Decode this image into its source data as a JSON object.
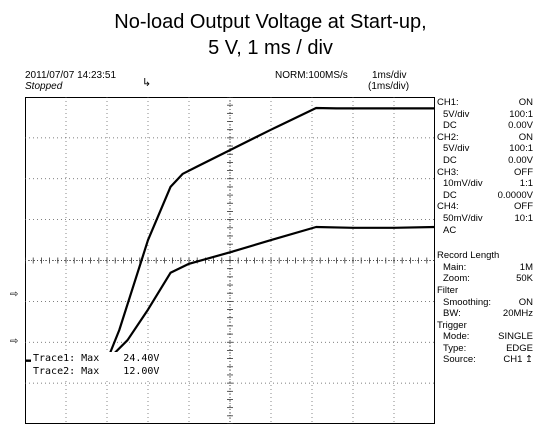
{
  "title_line1": "No-load Output Voltage at Start-up,",
  "title_line2": "5 V, 1 ms / div",
  "scope": {
    "datetime": "2011/07/07  14:23:51",
    "status": "Stopped",
    "acq": "NORM:100MS/s",
    "timebase": "1ms/div",
    "timebase_paren": "(1ms/div)"
  },
  "panel": {
    "ch1": {
      "name": "CH1:",
      "state": "ON",
      "vdiv": "5V/div",
      "probe": "100:1",
      "coupling": "DC",
      "offset": "0.00V"
    },
    "ch2": {
      "name": "CH2:",
      "state": "ON",
      "vdiv": "5V/div",
      "probe": "100:1",
      "coupling": "DC",
      "offset": "0.00V"
    },
    "ch3": {
      "name": "CH3:",
      "state": "OFF",
      "vdiv": "10mV/div",
      "probe": "1:1",
      "coupling": "DC",
      "offset": "0.0000V"
    },
    "ch4": {
      "name": "CH4:",
      "state": "OFF",
      "vdiv": "50mV/div",
      "probe": "10:1",
      "coupling": "AC"
    },
    "record_length": "Record Length",
    "main_k": "Main:",
    "main_v": "1M",
    "zoom_k": "Zoom:",
    "zoom_v": "50K",
    "filter": "Filter",
    "smoothing_k": "Smoothing:",
    "smoothing_v": "ON",
    "bw_k": "BW:",
    "bw_v": "20MHz",
    "trigger": "Trigger",
    "mode_k": "Mode:",
    "mode_v": "SINGLE",
    "type_k": "Type:",
    "type_v": "EDGE",
    "source_k": "Source:",
    "source_v": "CH1"
  },
  "traces": {
    "line1": "Trace1: Max    24.40V",
    "line2": "Trace2: Max    12.00V"
  },
  "chart_data": {
    "type": "line",
    "x_unit": "ms",
    "xlim": [
      0,
      10
    ],
    "ylim": [
      -4,
      4
    ],
    "grid": true,
    "series": [
      {
        "x": [
          0,
          2.0,
          2.3,
          3.0,
          3.55,
          3.85,
          4.2,
          5,
          6,
          7.1,
          7.6,
          8.5,
          9.5,
          10
        ],
        "y": [
          -2.45,
          -2.45,
          -1.7,
          0.5,
          1.8,
          2.12,
          2.3,
          2.7,
          3.2,
          3.73,
          3.72,
          3.72,
          3.72,
          3.72
        ]
      },
      {
        "x": [
          0,
          2.0,
          2.5,
          3.0,
          3.55,
          4.0,
          5,
          6,
          7.1,
          8,
          9,
          10
        ],
        "y": [
          -2.45,
          -2.45,
          -1.95,
          -1.2,
          -0.3,
          -0.08,
          0.2,
          0.5,
          0.82,
          0.8,
          0.8,
          0.82
        ]
      }
    ]
  }
}
